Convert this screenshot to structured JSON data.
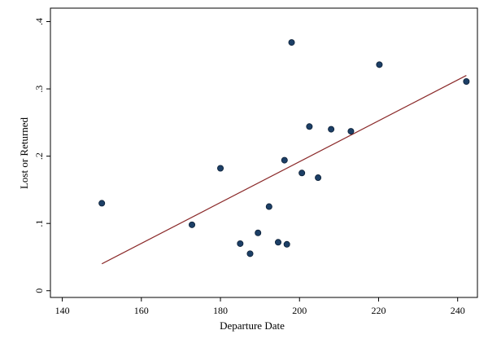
{
  "chart_data": {
    "type": "scatter",
    "title": "",
    "xlabel": "Departure Date",
    "ylabel": "Lost or Returned",
    "xlim": [
      137,
      245
    ],
    "ylim": [
      -0.01,
      0.42
    ],
    "x_ticks": [
      {
        "value": 140,
        "label": "140"
      },
      {
        "value": 160,
        "label": "160"
      },
      {
        "value": 180,
        "label": "180"
      },
      {
        "value": 200,
        "label": "200"
      },
      {
        "value": 220,
        "label": "220"
      },
      {
        "value": 240,
        "label": "240"
      }
    ],
    "y_ticks": [
      {
        "value": 0,
        "label": "0"
      },
      {
        "value": 0.1,
        "label": ".1"
      },
      {
        "value": 0.2,
        "label": ".2"
      },
      {
        "value": 0.3,
        "label": ".3"
      },
      {
        "value": 0.4,
        "label": ".4"
      }
    ],
    "grid": false,
    "points": [
      {
        "x": 150,
        "y": 0.13
      },
      {
        "x": 172.8,
        "y": 0.098
      },
      {
        "x": 180,
        "y": 0.182
      },
      {
        "x": 185,
        "y": 0.07
      },
      {
        "x": 187.5,
        "y": 0.055
      },
      {
        "x": 189.5,
        "y": 0.086
      },
      {
        "x": 192.3,
        "y": 0.125
      },
      {
        "x": 194.6,
        "y": 0.072
      },
      {
        "x": 196.2,
        "y": 0.194
      },
      {
        "x": 196.8,
        "y": 0.069
      },
      {
        "x": 198,
        "y": 0.369
      },
      {
        "x": 200.6,
        "y": 0.175
      },
      {
        "x": 202.5,
        "y": 0.244
      },
      {
        "x": 204.7,
        "y": 0.168
      },
      {
        "x": 208,
        "y": 0.24
      },
      {
        "x": 213,
        "y": 0.237
      },
      {
        "x": 220.2,
        "y": 0.336
      },
      {
        "x": 242.2,
        "y": 0.311
      }
    ],
    "fit_line": {
      "x": [
        150,
        242.2
      ],
      "y": [
        0.04,
        0.32
      ]
    },
    "colors": {
      "points": "#1c3f66",
      "fit_line": "#8b2a2a",
      "axes": "#000000"
    }
  }
}
